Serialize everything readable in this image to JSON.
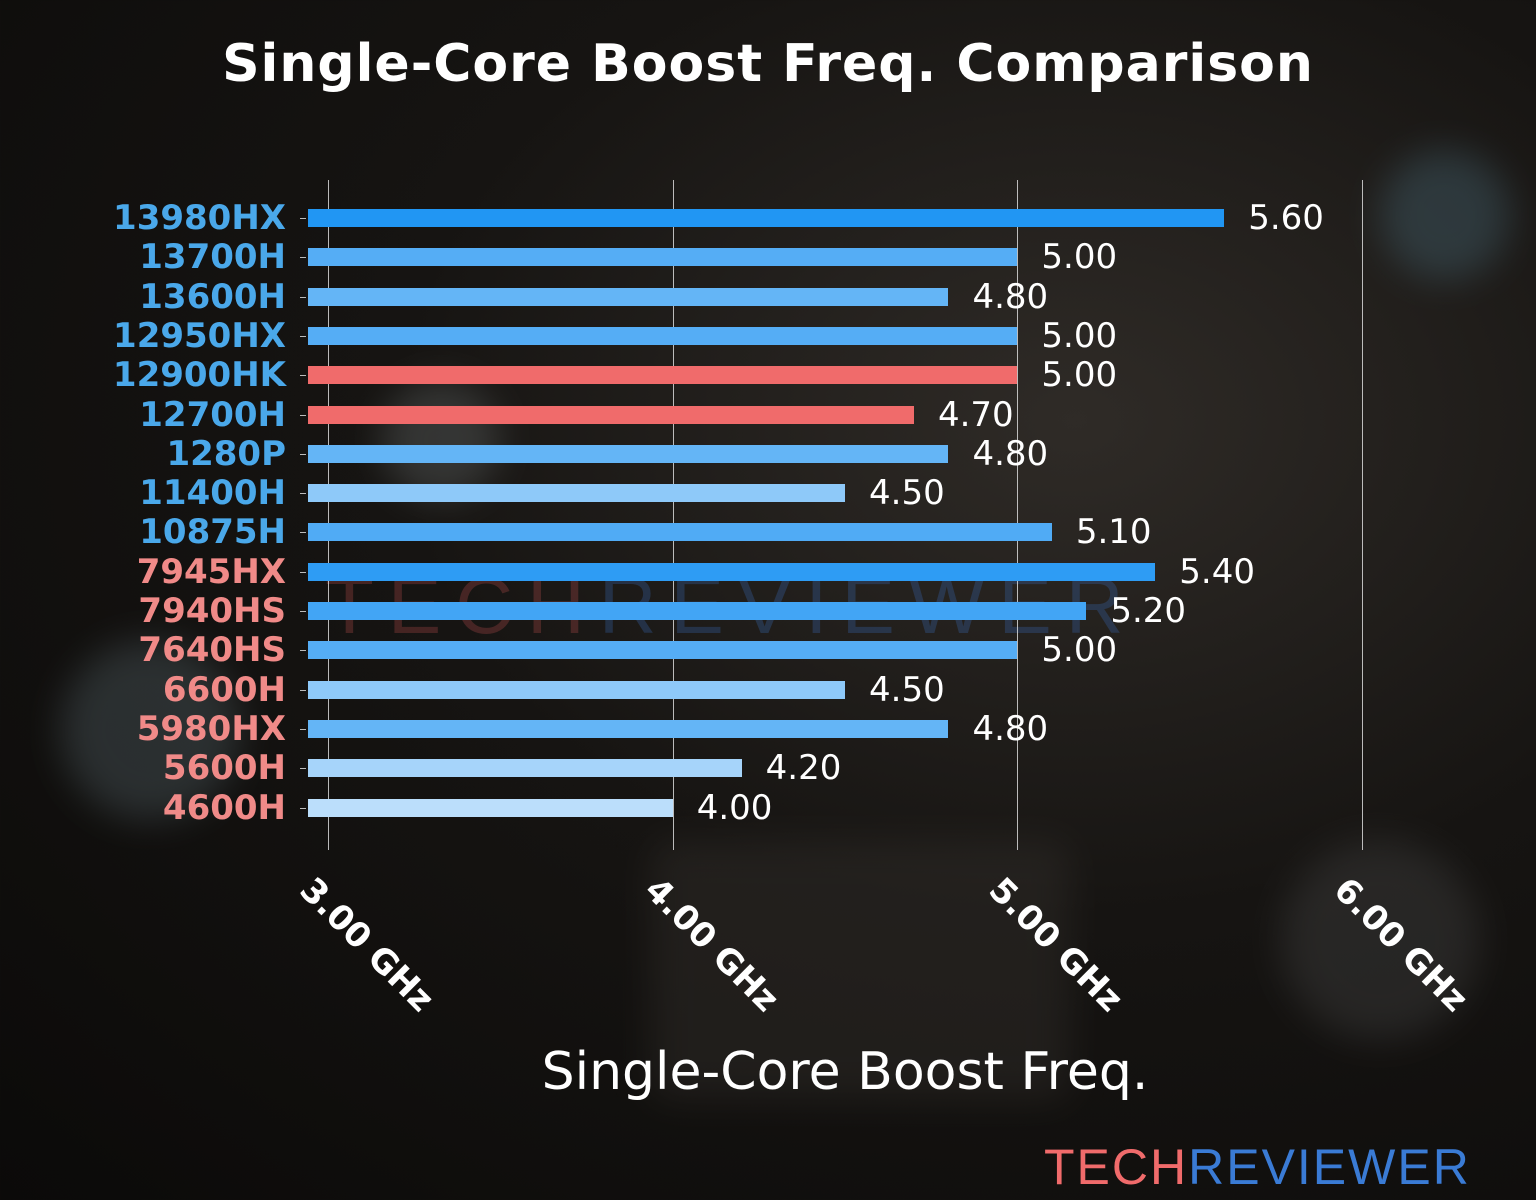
{
  "chart_data": {
    "type": "bar",
    "orientation": "horizontal",
    "title": "Single-Core Boost Freq. Comparison",
    "xlabel": "Single-Core Boost Freq.",
    "ylabel": "",
    "xlim": [
      2.94,
      6.0
    ],
    "xticks": [
      "3.00 GHz",
      "4.00 GHz",
      "5.00 GHz",
      "6.00 GHz"
    ],
    "grid": "vertical",
    "categories": [
      "13980HX",
      "13700H",
      "13600H",
      "12950HX",
      "12900HK",
      "12700H",
      "1280P",
      "11400H",
      "10875H",
      "7945HX",
      "7940HS",
      "7640HS",
      "6600H",
      "5980HX",
      "5600H",
      "4600H"
    ],
    "values": [
      5.6,
      5.0,
      4.8,
      5.0,
      5.0,
      4.7,
      4.8,
      4.5,
      5.1,
      5.4,
      5.2,
      5.0,
      4.5,
      4.8,
      4.2,
      4.0
    ],
    "value_labels": [
      "5.60",
      "5.00",
      "4.80",
      "5.00",
      "5.00",
      "4.70",
      "4.80",
      "4.50",
      "5.10",
      "5.40",
      "5.20",
      "5.00",
      "4.50",
      "4.80",
      "4.20",
      "4.00"
    ],
    "label_colors": [
      "#4aa8ea",
      "#4aa8ea",
      "#4aa8ea",
      "#4aa8ea",
      "#4aa8ea",
      "#4aa8ea",
      "#4aa8ea",
      "#4aa8ea",
      "#4aa8ea",
      "#f08a88",
      "#f08a88",
      "#f08a88",
      "#f08a88",
      "#f08a88",
      "#f08a88",
      "#f08a88"
    ],
    "bar_colors": [
      "#2196f3",
      "#55adf5",
      "#64b5f6",
      "#55adf5",
      "#f06b6b",
      "#f06b6b",
      "#64b5f6",
      "#8ec9f9",
      "#50abf5",
      "#2e9cf4",
      "#42a5f5",
      "#55adf5",
      "#8ec9f9",
      "#64b5f6",
      "#a6d4fa",
      "#bbdefb"
    ],
    "legend": null
  },
  "branding": {
    "watermark_left": "TECH",
    "watermark_right": "REVIEWER",
    "logo_left": "TECH",
    "logo_right": "REVIEWER",
    "logo_left_color": "#f06b6b",
    "logo_right_color": "#3a7bd5"
  }
}
